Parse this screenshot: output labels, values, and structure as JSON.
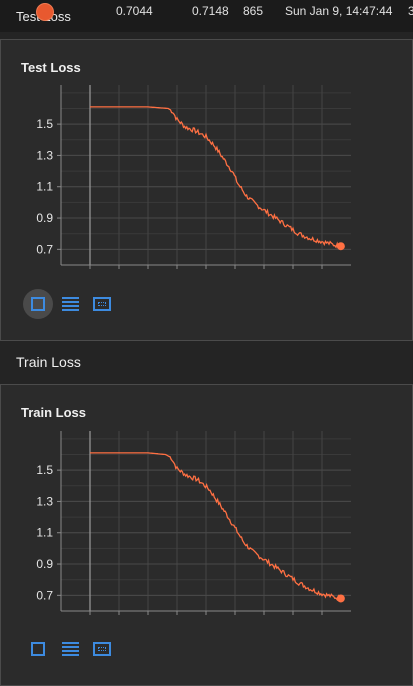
{
  "tooltip": {
    "series": "Test Loss",
    "smoothed": "0.7044",
    "value": "0.7148",
    "step": "865",
    "time": "Sun Jan 9, 14:47:44",
    "relative": "3"
  },
  "cards": [
    {
      "title": "Test Loss",
      "chart_data": {
        "type": "line",
        "title": "Test Loss",
        "xlabel": "",
        "ylabel": "",
        "xlim": [
          -100,
          900
        ],
        "ylim": [
          0.6,
          1.75
        ],
        "x_ticks": [
          "0",
          "100",
          "200",
          "300",
          "400",
          "500",
          "600",
          "700",
          "800"
        ],
        "y_ticks": [
          "0.7",
          "0.9",
          "1.1",
          "1.3",
          "1.5"
        ],
        "grid": true,
        "color": "#ff7043",
        "series": [
          {
            "x": [
              0,
              100,
              200,
              270,
              285,
              300,
              330,
              360,
              400,
              430,
              460,
              490,
              510,
              540,
              570,
              600,
              640,
              680,
              720,
              760,
              800,
              840,
              865
            ],
            "y": [
              1.61,
              1.61,
              1.61,
              1.6,
              1.58,
              1.53,
              1.48,
              1.46,
              1.42,
              1.36,
              1.28,
              1.2,
              1.12,
              1.04,
              0.99,
              0.95,
              0.9,
              0.85,
              0.8,
              0.77,
              0.75,
              0.73,
              0.72
            ]
          }
        ]
      }
    },
    {
      "title": "Train Loss",
      "chart_data": {
        "type": "line",
        "title": "Train Loss",
        "xlabel": "",
        "ylabel": "",
        "xlim": [
          -100,
          900
        ],
        "ylim": [
          0.6,
          1.75
        ],
        "x_ticks": [
          "0",
          "100",
          "200",
          "300",
          "400",
          "500",
          "600",
          "700",
          "800"
        ],
        "y_ticks": [
          "0.7",
          "0.9",
          "1.1",
          "1.3",
          "1.5"
        ],
        "grid": true,
        "color": "#ff7043",
        "series": [
          {
            "x": [
              0,
              100,
              200,
              260,
              280,
              300,
              330,
              370,
              410,
              440,
              470,
              500,
              530,
              560,
              600,
              640,
              680,
              720,
              760,
              800,
              840,
              865
            ],
            "y": [
              1.61,
              1.61,
              1.61,
              1.6,
              1.58,
              1.51,
              1.47,
              1.44,
              1.38,
              1.3,
              1.22,
              1.13,
              1.04,
              0.98,
              0.93,
              0.88,
              0.83,
              0.78,
              0.74,
              0.71,
              0.69,
              0.68
            ]
          }
        ]
      }
    }
  ],
  "section_label": "Train Loss",
  "toolbar": {
    "expand_icon": "fullscreen-icon",
    "lines_icon": "toggle-y-axis-log-icon",
    "frame_icon": "fit-domain-icon"
  }
}
